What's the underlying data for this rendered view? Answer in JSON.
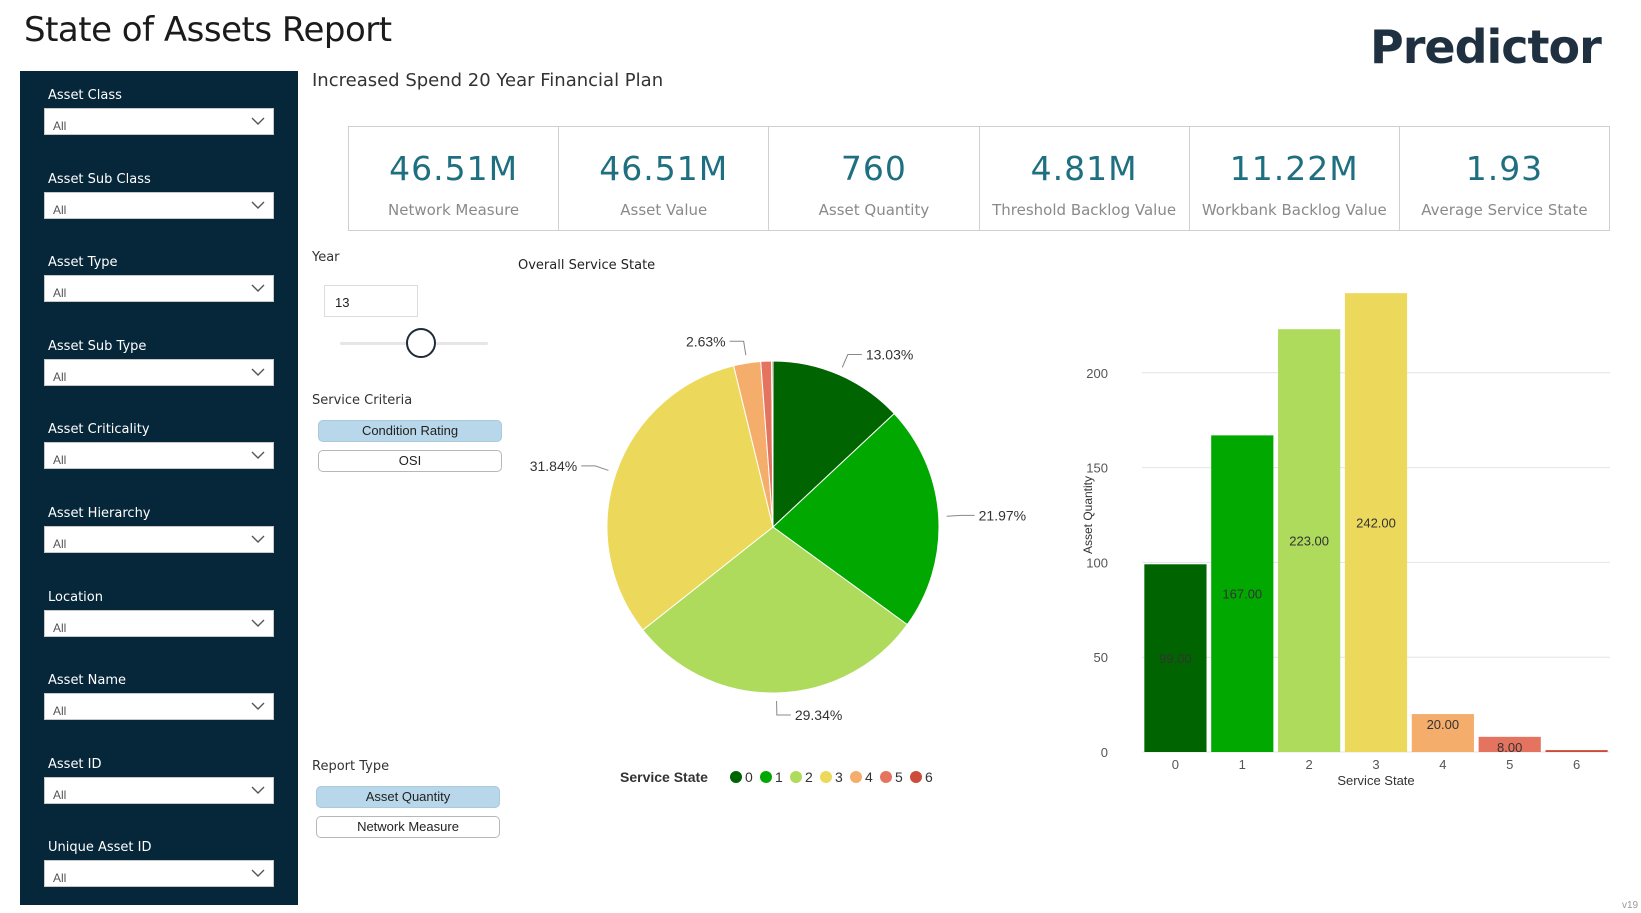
{
  "header": {
    "title": "State of Assets Report",
    "logo": "Predictor",
    "subtitle": "Increased Spend 20 Year Financial Plan"
  },
  "filters": [
    {
      "label": "Asset Class",
      "value": "All"
    },
    {
      "label": "Asset Sub Class",
      "value": "All"
    },
    {
      "label": "Asset Type",
      "value": "All"
    },
    {
      "label": "Asset Sub Type",
      "value": "All"
    },
    {
      "label": "Asset Criticality",
      "value": "All"
    },
    {
      "label": "Asset Hierarchy",
      "value": "All"
    },
    {
      "label": "Location",
      "value": "All"
    },
    {
      "label": "Asset Name",
      "value": "All"
    },
    {
      "label": "Asset ID",
      "value": "All"
    },
    {
      "label": "Unique Asset ID",
      "value": "All"
    }
  ],
  "kpis": [
    {
      "value": "46.51M",
      "label": "Network Measure"
    },
    {
      "value": "46.51M",
      "label": "Asset Value"
    },
    {
      "value": "760",
      "label": "Asset Quantity"
    },
    {
      "value": "4.81M",
      "label": "Threshold Backlog Value"
    },
    {
      "value": "11.22M",
      "label": "Workbank Backlog Value"
    },
    {
      "value": "1.93",
      "label": "Average Service State"
    }
  ],
  "year": {
    "label": "Year",
    "value": "13",
    "slider_fraction": 0.55
  },
  "service_criteria": {
    "label": "Service Criteria",
    "options": [
      "Condition Rating",
      "OSI"
    ],
    "selected": "Condition Rating"
  },
  "report_type": {
    "label": "Report Type",
    "options": [
      "Asset Quantity",
      "Network Measure"
    ],
    "selected": "Asset Quantity"
  },
  "colors": {
    "0": "#006400",
    "1": "#00a800",
    "2": "#aedb5b",
    "3": "#ecd95b",
    "4": "#f4ad6a",
    "5": "#e4745f",
    "6": "#cc4c3b",
    "kpi": "#1e6f80",
    "sidebar": "#06263a"
  },
  "version": "v19",
  "chart_data": [
    {
      "type": "pie",
      "title": "Overall Service State",
      "legend_title": "Service State",
      "legend_placement": "bottom",
      "categories": [
        "0",
        "1",
        "2",
        "3",
        "4",
        "5",
        "6"
      ],
      "values": [
        13.03,
        21.97,
        29.34,
        31.84,
        2.63,
        1.05,
        0.13
      ],
      "labels": [
        "13.03%",
        "21.97%",
        "29.34%",
        "31.84%",
        "2.63%",
        "",
        ""
      ]
    },
    {
      "type": "bar",
      "categories": [
        "0",
        "1",
        "2",
        "3",
        "4",
        "5",
        "6"
      ],
      "values": [
        99,
        167,
        223,
        242,
        20,
        8,
        1
      ],
      "data_labels": [
        "99.00",
        "167.00",
        "223.00",
        "242.00",
        "20.00",
        "8.00",
        ""
      ],
      "xlabel": "Service State",
      "ylabel": "Asset Quantity",
      "ylim": [
        0,
        250
      ],
      "yticks": [
        "0",
        "50",
        "100",
        "150",
        "200"
      ],
      "grid": true
    }
  ]
}
